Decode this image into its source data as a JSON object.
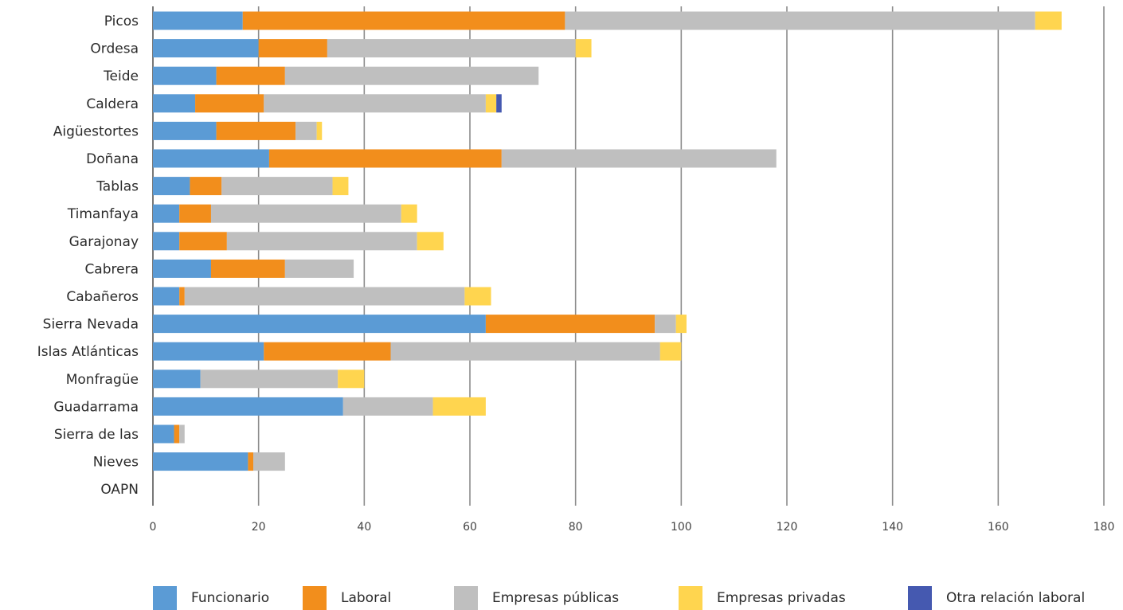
{
  "chart_data": {
    "type": "bar",
    "orientation": "horizontal",
    "stacked": true,
    "categories": [
      "Picos",
      "Ordesa",
      "Teide",
      "Caldera",
      "Aigüestortes",
      "Doñana",
      "Tablas",
      "Timanfaya",
      "Garajonay",
      "Cabrera",
      "Cabañeros",
      "Sierra Nevada",
      "Islas Atlánticas",
      "Monfragüe",
      "Guadarrama",
      "Sierra de las",
      "Nieves",
      "OAPN"
    ],
    "series": [
      {
        "name": "Funcionario",
        "color": "#5b9bd5",
        "values": [
          17,
          20,
          12,
          8,
          12,
          22,
          7,
          5,
          5,
          11,
          5,
          63,
          21,
          9,
          36,
          4,
          18,
          0
        ]
      },
      {
        "name": "Laboral",
        "color": "#f28e1c",
        "values": [
          61,
          13,
          13,
          13,
          15,
          44,
          6,
          6,
          9,
          14,
          1,
          32,
          24,
          0,
          0,
          1,
          1,
          0
        ]
      },
      {
        "name": "Empresas públicas",
        "color": "#bfbfbf",
        "values": [
          89,
          47,
          48,
          42,
          4,
          52,
          21,
          36,
          36,
          13,
          53,
          4,
          51,
          26,
          17,
          1,
          6,
          0
        ]
      },
      {
        "name": "Empresas privadas",
        "color": "#ffd54f",
        "values": [
          5,
          3,
          0,
          2,
          1,
          0,
          3,
          3,
          5,
          0,
          5,
          2,
          4,
          5,
          10,
          0,
          0,
          0
        ]
      },
      {
        "name": "Otra relación laboral",
        "color": "#4559b0",
        "values": [
          0,
          0,
          0,
          1,
          0,
          0,
          0,
          0,
          0,
          0,
          0,
          0,
          0,
          0,
          0,
          0,
          0,
          0
        ]
      }
    ],
    "xlim": [
      0,
      180
    ],
    "xticks": [
      0,
      20,
      40,
      60,
      80,
      100,
      120,
      140,
      160,
      180
    ],
    "xticks_text": [
      "0",
      "20",
      "40",
      "60",
      "80",
      "100",
      "120",
      "140",
      "160",
      "180"
    ],
    "grid": "vertical",
    "legend_position": "bottom"
  }
}
